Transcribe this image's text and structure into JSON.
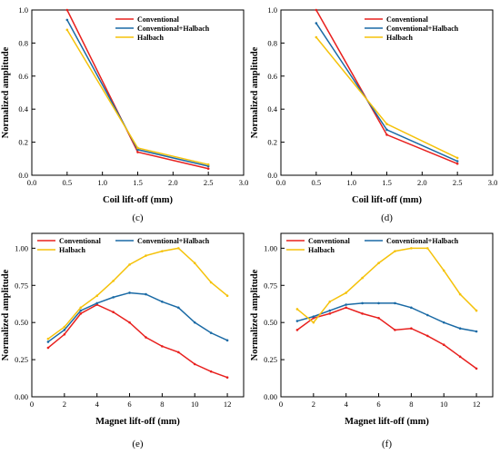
{
  "series_colors": [
    "#e8201e",
    "#1a6aa5",
    "#f5c20a"
  ],
  "chart_data": [
    {
      "type": "line",
      "caption": "(c)",
      "xlabel": "Coil lift-off (mm)",
      "ylabel": "Normalized amplitude",
      "xlim": [
        0.0,
        3.0
      ],
      "ylim": [
        0.0,
        1.0
      ],
      "xticks": [
        "0.0",
        "0.5",
        "1.0",
        "1.5",
        "2.0",
        "2.5",
        "3.0"
      ],
      "yticks": [
        "0.0",
        "0.2",
        "0.4",
        "0.6",
        "0.8",
        "1.0"
      ],
      "legend_position": "top-right",
      "x": [
        0.5,
        1.5,
        2.5
      ],
      "series": [
        {
          "name": "Conventional",
          "values": [
            1.0,
            0.14,
            0.04
          ]
        },
        {
          "name": "Conventional+Halbach",
          "values": [
            0.94,
            0.155,
            0.055
          ]
        },
        {
          "name": "Halbach",
          "values": [
            0.88,
            0.165,
            0.065
          ]
        }
      ]
    },
    {
      "type": "line",
      "caption": "(d)",
      "xlabel": "Coil lift-off (mm)",
      "ylabel": "Normalized amplitude",
      "xlim": [
        0.0,
        3.0
      ],
      "ylim": [
        0.0,
        1.0
      ],
      "xticks": [
        "0.0",
        "0.5",
        "1.0",
        "1.5",
        "2.0",
        "2.5",
        "3.0"
      ],
      "yticks": [
        "0.0",
        "0.2",
        "0.4",
        "0.6",
        "0.8",
        "1.0"
      ],
      "legend_position": "top-right",
      "x": [
        0.5,
        1.5,
        2.5
      ],
      "series": [
        {
          "name": "Conventional",
          "values": [
            1.0,
            0.245,
            0.07
          ]
        },
        {
          "name": "Conventional+Halbach",
          "values": [
            0.92,
            0.275,
            0.085
          ]
        },
        {
          "name": "Halbach",
          "values": [
            0.835,
            0.31,
            0.105
          ]
        }
      ]
    },
    {
      "type": "line",
      "caption": "(e)",
      "xlabel": "Magnet lift-off (mm)",
      "ylabel": "Normalized amplitude",
      "xlim": [
        0,
        13
      ],
      "ylim": [
        0.0,
        1.1
      ],
      "xticks": [
        "0",
        "2",
        "4",
        "6",
        "8",
        "10",
        "12"
      ],
      "yticks": [
        "0.00",
        "0.25",
        "0.50",
        "0.75",
        "1.00"
      ],
      "legend_position": "top",
      "x": [
        1,
        2,
        3,
        4,
        5,
        6,
        7,
        8,
        9,
        10,
        11,
        12
      ],
      "series": [
        {
          "name": "Conventional",
          "values": [
            0.33,
            0.42,
            0.56,
            0.62,
            0.57,
            0.5,
            0.4,
            0.34,
            0.3,
            0.22,
            0.17,
            0.13
          ]
        },
        {
          "name": "Conventional+Halbach",
          "values": [
            0.37,
            0.45,
            0.58,
            0.63,
            0.67,
            0.7,
            0.69,
            0.64,
            0.6,
            0.5,
            0.43,
            0.38
          ]
        },
        {
          "name": "Halbach",
          "values": [
            0.39,
            0.47,
            0.6,
            0.68,
            0.78,
            0.89,
            0.95,
            0.98,
            1.0,
            0.9,
            0.77,
            0.68
          ]
        }
      ]
    },
    {
      "type": "line",
      "caption": "(f)",
      "xlabel": "Magnet lift-off (mm)",
      "ylabel": "Normalized amplitude",
      "xlim": [
        0,
        13
      ],
      "ylim": [
        0.0,
        1.1
      ],
      "xticks": [
        "0",
        "2",
        "4",
        "6",
        "8",
        "10",
        "12"
      ],
      "yticks": [
        "0.00",
        "0.25",
        "0.50",
        "0.75",
        "1.00"
      ],
      "legend_position": "top",
      "x": [
        1,
        2,
        3,
        4,
        5,
        6,
        7,
        8,
        9,
        10,
        11,
        12
      ],
      "series": [
        {
          "name": "Conventional",
          "values": [
            0.45,
            0.53,
            0.56,
            0.6,
            0.56,
            0.53,
            0.45,
            0.46,
            0.41,
            0.35,
            0.27,
            0.19
          ]
        },
        {
          "name": "Conventional+Halbach",
          "values": [
            0.51,
            0.54,
            0.58,
            0.62,
            0.63,
            0.63,
            0.63,
            0.6,
            0.55,
            0.5,
            0.46,
            0.44
          ]
        },
        {
          "name": "Halbach",
          "values": [
            0.59,
            0.5,
            0.64,
            0.7,
            0.8,
            0.9,
            0.98,
            1.0,
            1.0,
            0.85,
            0.69,
            0.58
          ]
        }
      ]
    }
  ]
}
